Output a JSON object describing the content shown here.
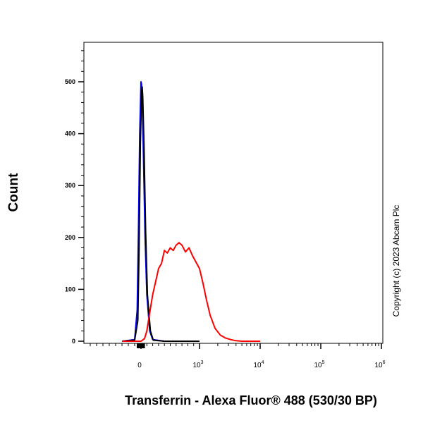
{
  "chart_data": {
    "type": "line",
    "title": "",
    "xlabel": "Transferrin - Alexa Fluor® 488 (530/30 BP)",
    "ylabel": "Count",
    "ylim": [
      0,
      580
    ],
    "x_scale": "biexponential",
    "y_ticks": [
      0,
      100,
      200,
      300,
      400,
      500
    ],
    "y_tick_labels": [
      "0",
      "100",
      "200",
      "300",
      "400",
      "500"
    ],
    "x_ticks": [
      {
        "value": 0,
        "base": "0",
        "exp": ""
      },
      {
        "value": 1000,
        "base": "10",
        "exp": "3"
      },
      {
        "value": 10000,
        "base": "10",
        "exp": "4"
      },
      {
        "value": 100000,
        "base": "10",
        "exp": "5"
      },
      {
        "value": 1000000,
        "base": "10",
        "exp": "6"
      }
    ],
    "grid": false,
    "series": [
      {
        "color": "#0000ff",
        "x": [
          -300,
          -100,
          -60,
          -40,
          -20,
          0,
          10,
          20,
          40,
          70,
          100,
          150,
          200,
          400,
          1000
        ],
        "y": [
          0,
          3,
          60,
          210,
          400,
          500,
          495,
          470,
          370,
          200,
          90,
          20,
          3,
          0,
          0
        ]
      },
      {
        "color": "#000000",
        "x": [
          -300,
          -100,
          -50,
          -30,
          -10,
          10,
          20,
          30,
          50,
          80,
          110,
          160,
          210,
          400,
          1000
        ],
        "y": [
          0,
          2,
          40,
          180,
          380,
          480,
          490,
          470,
          380,
          210,
          90,
          20,
          2,
          0,
          0
        ]
      },
      {
        "color": "#ff0000",
        "x": [
          -300,
          0,
          60,
          100,
          150,
          200,
          250,
          300,
          350,
          400,
          450,
          500,
          550,
          600,
          650,
          700,
          760,
          820,
          880,
          1000,
          1150,
          1300,
          1500,
          1800,
          2200,
          2700,
          3300,
          4000,
          5000,
          7000,
          10000
        ],
        "y": [
          0,
          0,
          5,
          20,
          55,
          90,
          115,
          140,
          150,
          175,
          170,
          180,
          175,
          185,
          190,
          185,
          172,
          180,
          165,
          140,
          110,
          80,
          50,
          25,
          12,
          6,
          3,
          1,
          0,
          0,
          0
        ]
      }
    ]
  },
  "copyright": "Copyright (c) 2023 Abcam Plc"
}
